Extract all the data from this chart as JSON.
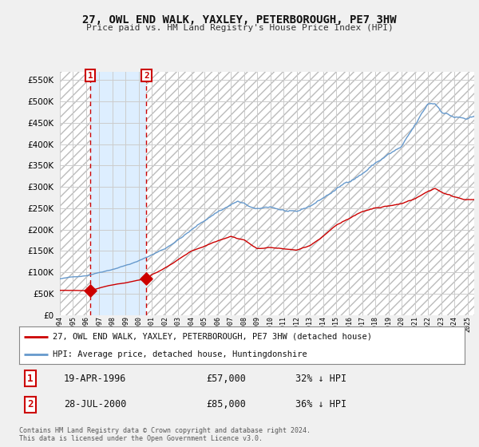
{
  "title": "27, OWL END WALK, YAXLEY, PETERBOROUGH, PE7 3HW",
  "subtitle": "Price paid vs. HM Land Registry's House Price Index (HPI)",
  "legend_line1": "27, OWL END WALK, YAXLEY, PETERBOROUGH, PE7 3HW (detached house)",
  "legend_line2": "HPI: Average price, detached house, Huntingdonshire",
  "footnote": "Contains HM Land Registry data © Crown copyright and database right 2024.\nThis data is licensed under the Open Government Licence v3.0.",
  "transaction1_label": "1",
  "transaction1_date": "19-APR-1996",
  "transaction1_price": "£57,000",
  "transaction1_hpi": "32% ↓ HPI",
  "transaction2_label": "2",
  "transaction2_date": "28-JUL-2000",
  "transaction2_price": "£85,000",
  "transaction2_hpi": "36% ↓ HPI",
  "sale_color": "#cc0000",
  "hpi_color": "#6699cc",
  "highlight_color": "#ddeeff",
  "background_color": "#f0f0f0",
  "plot_bg_color": "#ffffff",
  "hatch_color": "#cccccc",
  "ylim": [
    0,
    570000
  ],
  "yticks": [
    0,
    50000,
    100000,
    150000,
    200000,
    250000,
    300000,
    350000,
    400000,
    450000,
    500000,
    550000
  ],
  "sale_date1": 1996.3,
  "sale_date2": 2000.58,
  "sale_price1": 57000,
  "sale_price2": 85000,
  "xmin": 1994.0,
  "xmax": 2025.5
}
